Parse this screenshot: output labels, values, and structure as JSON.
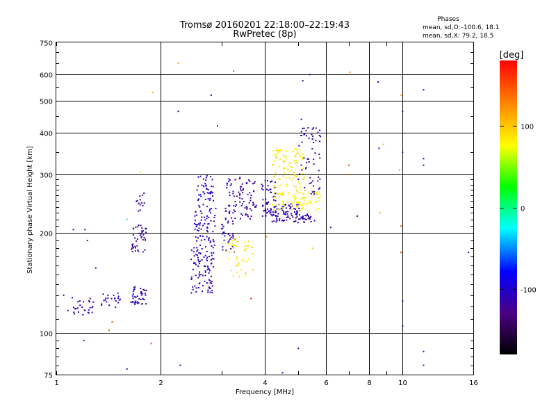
{
  "chart_data": {
    "type": "scatter",
    "title": "Tromsø 20160201 22:18:00–22:19:43",
    "subtitle": "RwPretec (8p)",
    "stats": {
      "heading": "Phases",
      "line1": "mean, sd,O:–100.6, 18.1",
      "line2": "mean, sd,X:  79.2, 18.5"
    },
    "xlabel": "Frequency [MHz]",
    "ylabel": "Stationary phase Virtual Height [km]",
    "x_scale": "log",
    "y_scale": "log",
    "xlim": [
      1,
      16
    ],
    "ylim": [
      75,
      750
    ],
    "x_ticks": [
      1,
      2,
      4,
      6,
      8,
      10,
      16
    ],
    "x_tick_labels": [
      "1",
      "2",
      "4",
      "6",
      "8",
      "10",
      "16"
    ],
    "y_ticks": [
      75,
      100,
      200,
      300,
      400,
      500,
      600,
      750
    ],
    "y_tick_labels": [
      "75",
      "100",
      "200",
      "300",
      "400",
      "500",
      "600",
      "750"
    ],
    "grid": true,
    "colorbar": {
      "label": "[deg]",
      "range": [
        -180,
        180
      ],
      "ticks": [
        100,
        0,
        -100
      ],
      "tick_labels": [
        "100",
        "0",
        "-100"
      ],
      "colors": [
        "#000000",
        "#4b0082",
        "#0000ff",
        "#00ffff",
        "#00ff00",
        "#ffff00",
        "#ff8000",
        "#ff0000"
      ]
    },
    "clusters": [
      {
        "x": [
          1.08,
          1.28
        ],
        "y": [
          112,
          130
        ],
        "phase": -110,
        "n": 28
      },
      {
        "x": [
          1.35,
          1.55
        ],
        "y": [
          118,
          132
        ],
        "phase": -105,
        "n": 22
      },
      {
        "x": [
          1.62,
          1.82
        ],
        "y": [
          122,
          138
        ],
        "phase": -110,
        "n": 40
      },
      {
        "x": [
          1.65,
          1.82
        ],
        "y": [
          175,
          215
        ],
        "phase": -120,
        "n": 45
      },
      {
        "x": [
          1.7,
          1.8
        ],
        "y": [
          230,
          265
        ],
        "phase": -120,
        "n": 14
      },
      {
        "x": [
          2.45,
          2.85
        ],
        "y": [
          132,
          180
        ],
        "phase": -105,
        "n": 90
      },
      {
        "x": [
          2.5,
          2.9
        ],
        "y": [
          180,
          240
        ],
        "phase": -100,
        "n": 70
      },
      {
        "x": [
          2.55,
          2.85
        ],
        "y": [
          240,
          300
        ],
        "phase": -95,
        "n": 45
      },
      {
        "x": [
          3.0,
          3.3
        ],
        "y": [
          175,
          240
        ],
        "phase": -110,
        "n": 45
      },
      {
        "x": [
          3.1,
          3.45
        ],
        "y": [
          240,
          295
        ],
        "phase": -105,
        "n": 35
      },
      {
        "x": [
          3.1,
          3.7
        ],
        "y": [
          148,
          195
        ],
        "phase": 90,
        "n": 45
      },
      {
        "x": [
          3.4,
          3.8
        ],
        "y": [
          220,
          290
        ],
        "phase": -115,
        "n": 45
      },
      {
        "x": [
          3.9,
          4.3
        ],
        "y": [
          225,
          290
        ],
        "phase": -110,
        "n": 45
      },
      {
        "x": [
          4.0,
          5.1
        ],
        "y": [
          228,
          245
        ],
        "phase": -100,
        "n": 60
      },
      {
        "x": [
          4.2,
          5.6
        ],
        "y": [
          215,
          228
        ],
        "phase": -110,
        "n": 60
      },
      {
        "x": [
          4.2,
          5.2
        ],
        "y": [
          235,
          360
        ],
        "phase": 85,
        "n": 140
      },
      {
        "x": [
          4.8,
          5.8
        ],
        "y": [
          230,
          270
        ],
        "phase": 80,
        "n": 45
      },
      {
        "x": [
          5.0,
          5.8
        ],
        "y": [
          260,
          420
        ],
        "phase": -110,
        "n": 60
      }
    ],
    "points": [
      {
        "x": 1.05,
        "y": 130,
        "phase": -100
      },
      {
        "x": 1.12,
        "y": 205,
        "phase": -100
      },
      {
        "x": 1.21,
        "y": 205,
        "phase": -130
      },
      {
        "x": 1.23,
        "y": 190,
        "phase": -120
      },
      {
        "x": 1.2,
        "y": 95,
        "phase": -110
      },
      {
        "x": 1.3,
        "y": 157,
        "phase": -110
      },
      {
        "x": 1.42,
        "y": 102,
        "phase": 150
      },
      {
        "x": 1.45,
        "y": 108,
        "phase": 160
      },
      {
        "x": 1.6,
        "y": 220,
        "phase": 0
      },
      {
        "x": 1.75,
        "y": 305,
        "phase": 60
      },
      {
        "x": 1.6,
        "y": 78,
        "phase": -110
      },
      {
        "x": 1.88,
        "y": 93,
        "phase": 150
      },
      {
        "x": 1.9,
        "y": 530,
        "phase": 110
      },
      {
        "x": 2.25,
        "y": 650,
        "phase": 120
      },
      {
        "x": 2.25,
        "y": 465,
        "phase": -120
      },
      {
        "x": 2.28,
        "y": 80,
        "phase": -110
      },
      {
        "x": 2.8,
        "y": 520,
        "phase": -120
      },
      {
        "x": 2.92,
        "y": 420,
        "phase": -100
      },
      {
        "x": 3.25,
        "y": 615,
        "phase": 150
      },
      {
        "x": 3.3,
        "y": 290,
        "phase": 150
      },
      {
        "x": 3.65,
        "y": 127,
        "phase": 170
      },
      {
        "x": 4.05,
        "y": 195,
        "phase": 120
      },
      {
        "x": 4.5,
        "y": 76,
        "phase": -100
      },
      {
        "x": 5.0,
        "y": 90,
        "phase": -110
      },
      {
        "x": 5.1,
        "y": 440,
        "phase": -110
      },
      {
        "x": 5.15,
        "y": 575,
        "phase": -110
      },
      {
        "x": 5.4,
        "y": 600,
        "phase": -110
      },
      {
        "x": 5.5,
        "y": 180,
        "phase": 60
      },
      {
        "x": 6.2,
        "y": 208,
        "phase": -110
      },
      {
        "x": 7.0,
        "y": 320,
        "phase": 160
      },
      {
        "x": 7.0,
        "y": 300,
        "phase": 150
      },
      {
        "x": 7.05,
        "y": 610,
        "phase": 130
      },
      {
        "x": 7.4,
        "y": 225,
        "phase": -100
      },
      {
        "x": 8.5,
        "y": 570,
        "phase": -90
      },
      {
        "x": 8.55,
        "y": 360,
        "phase": -110
      },
      {
        "x": 8.6,
        "y": 230,
        "phase": 110
      },
      {
        "x": 8.8,
        "y": 370,
        "phase": 110
      },
      {
        "x": 9.8,
        "y": 310,
        "phase": 120
      },
      {
        "x": 9.9,
        "y": 520,
        "phase": 110
      },
      {
        "x": 9.9,
        "y": 210,
        "phase": 160
      },
      {
        "x": 9.9,
        "y": 175,
        "phase": 160
      },
      {
        "x": 10.0,
        "y": 465,
        "phase": -110
      },
      {
        "x": 10.0,
        "y": 350,
        "phase": -110
      },
      {
        "x": 10.0,
        "y": 125,
        "phase": -110
      },
      {
        "x": 10.0,
        "y": 105,
        "phase": -110
      },
      {
        "x": 11.5,
        "y": 540,
        "phase": -110
      },
      {
        "x": 11.5,
        "y": 335,
        "phase": -110
      },
      {
        "x": 11.5,
        "y": 320,
        "phase": -110
      },
      {
        "x": 11.5,
        "y": 88,
        "phase": -110
      },
      {
        "x": 11.5,
        "y": 80,
        "phase": -110
      },
      {
        "x": 15.5,
        "y": 175,
        "phase": -100
      }
    ]
  }
}
